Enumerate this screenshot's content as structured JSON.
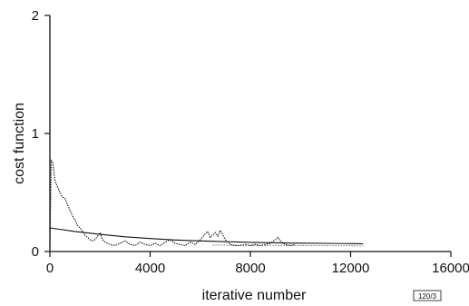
{
  "chart_data": {
    "type": "line",
    "xlabel": "iterative number",
    "ylabel": "cost function",
    "xlim": [
      0,
      16000
    ],
    "ylim": [
      0,
      2
    ],
    "x_ticks": [
      0,
      4000,
      8000,
      12000,
      16000
    ],
    "y_ticks": [
      0,
      1,
      2
    ],
    "x_tick_labels": [
      "0",
      "4000",
      "8000",
      "12000",
      "16000"
    ],
    "y_tick_labels": [
      "0",
      "1",
      "2"
    ],
    "grid": false,
    "series": [
      {
        "style": "dotted-noisy",
        "x": [
          0,
          50,
          120,
          200,
          300,
          400,
          500,
          600,
          700,
          800,
          900,
          1000,
          1100,
          1200,
          1300,
          1400,
          1500,
          1600,
          1700,
          1800,
          1900,
          2000,
          2100,
          2200,
          2400,
          2600,
          2800,
          3000,
          3200,
          3400,
          3600,
          3800,
          4000,
          4200,
          4400,
          4600,
          4800,
          5000,
          5200,
          5400,
          5600,
          5800,
          6000,
          6200,
          6300,
          6400,
          6500,
          6600,
          6700,
          6800,
          7000,
          7200,
          7400,
          7600,
          7800,
          8000,
          8200,
          8400,
          8600,
          8800,
          9000,
          9100,
          9200,
          9300,
          9400,
          9600,
          9800
        ],
        "y": [
          0.02,
          0.77,
          0.75,
          0.6,
          0.55,
          0.5,
          0.46,
          0.45,
          0.4,
          0.35,
          0.3,
          0.27,
          0.22,
          0.2,
          0.17,
          0.14,
          0.12,
          0.1,
          0.09,
          0.1,
          0.13,
          0.16,
          0.1,
          0.08,
          0.06,
          0.05,
          0.07,
          0.09,
          0.06,
          0.05,
          0.08,
          0.06,
          0.05,
          0.07,
          0.05,
          0.08,
          0.1,
          0.07,
          0.06,
          0.05,
          0.08,
          0.06,
          0.1,
          0.15,
          0.17,
          0.12,
          0.14,
          0.16,
          0.13,
          0.18,
          0.1,
          0.06,
          0.05,
          0.05,
          0.06,
          0.05,
          0.06,
          0.05,
          0.06,
          0.07,
          0.1,
          0.12,
          0.09,
          0.07,
          0.06,
          0.05,
          0.06
        ]
      },
      {
        "style": "solid",
        "x": [
          0,
          1000,
          2000,
          3000,
          4000,
          5000,
          6000,
          7000,
          8000,
          9000,
          10000,
          11000,
          12000,
          12500
        ],
        "y": [
          0.2,
          0.17,
          0.145,
          0.125,
          0.11,
          0.098,
          0.09,
          0.083,
          0.078,
          0.074,
          0.071,
          0.069,
          0.067,
          0.066
        ]
      },
      {
        "style": "dotted",
        "x": [
          6500,
          8000,
          10000,
          12500
        ],
        "y": [
          0.055,
          0.052,
          0.05,
          0.048
        ]
      }
    ],
    "figure_tag": "120/3"
  }
}
